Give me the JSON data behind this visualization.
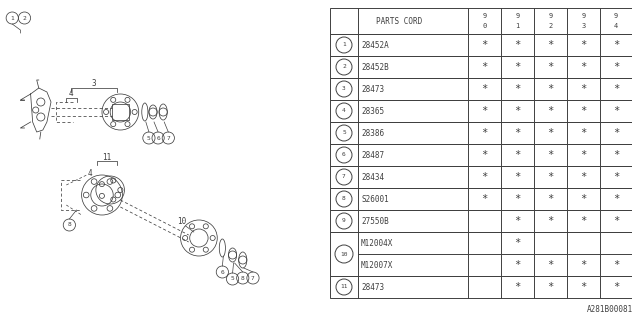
{
  "watermark": "A281B00081",
  "rows": [
    {
      "num": "1",
      "circle": true,
      "code": "28452A",
      "stars": [
        true,
        true,
        true,
        true,
        true
      ]
    },
    {
      "num": "2",
      "circle": true,
      "code": "28452B",
      "stars": [
        true,
        true,
        true,
        true,
        true
      ]
    },
    {
      "num": "3",
      "circle": true,
      "code": "28473",
      "stars": [
        true,
        true,
        true,
        true,
        true
      ]
    },
    {
      "num": "4",
      "circle": true,
      "code": "28365",
      "stars": [
        true,
        true,
        true,
        true,
        true
      ]
    },
    {
      "num": "5",
      "circle": true,
      "code": "28386",
      "stars": [
        true,
        true,
        true,
        true,
        true
      ]
    },
    {
      "num": "6",
      "circle": true,
      "code": "28487",
      "stars": [
        true,
        true,
        true,
        true,
        true
      ]
    },
    {
      "num": "7",
      "circle": true,
      "code": "28434",
      "stars": [
        true,
        true,
        true,
        true,
        true
      ]
    },
    {
      "num": "8",
      "circle": true,
      "code": "S26001",
      "stars": [
        true,
        true,
        true,
        true,
        true
      ]
    },
    {
      "num": "9",
      "circle": true,
      "code": "27550B",
      "stars": [
        false,
        true,
        true,
        true,
        true
      ]
    },
    {
      "num": "10",
      "circle": true,
      "code": "M12004X",
      "stars": [
        false,
        true,
        false,
        false,
        false
      ],
      "double_top": true
    },
    {
      "num": "10",
      "circle": false,
      "code": "M12007X",
      "stars": [
        false,
        true,
        true,
        true,
        true
      ],
      "double_bot": true
    },
    {
      "num": "11",
      "circle": true,
      "code": "28473",
      "stars": [
        false,
        true,
        true,
        true,
        true
      ]
    }
  ],
  "bg_color": "#ffffff",
  "line_color": "#404040",
  "text_color": "#404040"
}
